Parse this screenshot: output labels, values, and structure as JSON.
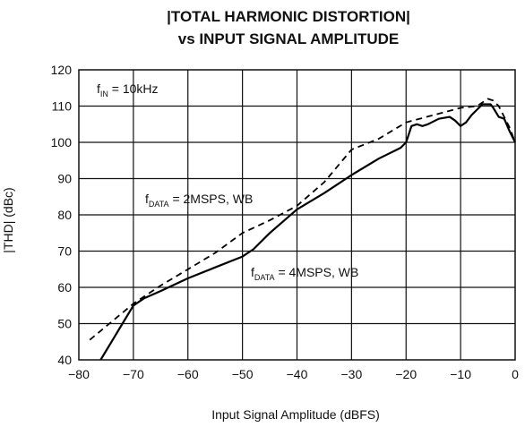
{
  "chart_data": {
    "type": "line",
    "title_line1": "|TOTAL HARMONIC DISTORTION|",
    "title_line2": "vs INPUT SIGNAL AMPLITUDE",
    "xlabel": "Input Signal Amplitude (dBFS)",
    "ylabel": "|THD| (dBc)",
    "xlim": [
      -80,
      0
    ],
    "ylim": [
      40,
      120
    ],
    "xticks": [
      -80,
      -70,
      -60,
      -50,
      -40,
      -30,
      -20,
      -10,
      0
    ],
    "yticks": [
      40,
      50,
      60,
      70,
      80,
      90,
      100,
      110,
      120
    ],
    "xtick_labels": [
      "−80",
      "−70",
      "−60",
      "−50",
      "−40",
      "−30",
      "−20",
      "−10",
      "0"
    ],
    "ytick_labels": [
      "40",
      "50",
      "60",
      "70",
      "80",
      "90",
      "100",
      "110",
      "120"
    ],
    "grid": true,
    "annotations": [
      {
        "main": "f",
        "sub": "IN",
        "rest": " = 10kHz"
      },
      {
        "main": "f",
        "sub": "DATA",
        "rest": " = 2MSPS, WB"
      },
      {
        "main": "f",
        "sub": "DATA",
        "rest": " = 4MSPS, WB"
      }
    ],
    "series": [
      {
        "style": "dashed",
        "x": [
          -78,
          -74,
          -70,
          -65,
          -60,
          -55,
          -50,
          -45,
          -40,
          -35,
          -30,
          -25,
          -20,
          -15,
          -10,
          -7,
          -5,
          -4,
          -3,
          -2,
          -1,
          0
        ],
        "y": [
          45.5,
          50.5,
          55.5,
          60.5,
          65,
          69.5,
          75,
          78.5,
          82.5,
          89,
          98,
          101,
          105.5,
          107.5,
          109.5,
          110,
          112,
          111.5,
          110,
          107,
          104,
          100
        ]
      },
      {
        "style": "solid",
        "x": [
          -76,
          -74,
          -72,
          -70,
          -68,
          -65,
          -60,
          -55,
          -50,
          -48,
          -45,
          -40,
          -35,
          -30,
          -25,
          -21,
          -20,
          -19,
          -18,
          -17,
          -16,
          -14,
          -12,
          -11,
          -10,
          -9,
          -8,
          -6,
          -4.5,
          -4,
          -3,
          -2,
          -1,
          0
        ],
        "y": [
          40,
          45,
          50,
          55,
          57,
          59,
          62.5,
          65.5,
          68.5,
          70.5,
          75,
          81.5,
          86,
          91,
          95.5,
          98.5,
          100,
          104.5,
          105,
          104.5,
          105,
          106.5,
          107,
          106,
          104.5,
          105.5,
          107.5,
          110.5,
          110.5,
          109.5,
          107,
          106.5,
          103,
          100
        ]
      }
    ]
  }
}
